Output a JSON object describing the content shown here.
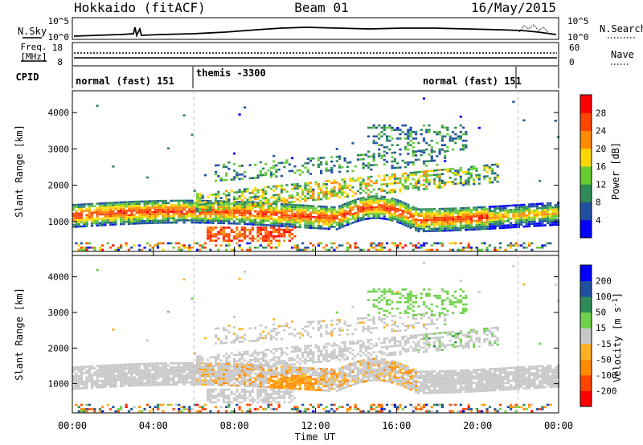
{
  "header": {
    "station": "Hokkaido (fitACF)",
    "beam": "Beam 01",
    "date": "16/May/2015"
  },
  "noise_panel": {
    "left_label": "N.Sky",
    "right_label": "N.Search",
    "left_ticks": [
      "10^5",
      "10^0"
    ],
    "right_ticks": [
      "10^5",
      "10^0"
    ]
  },
  "freq_panel": {
    "left_label_1": "Freq.",
    "left_label_2": "[MHz]",
    "left_ticks": [
      "18",
      "8"
    ],
    "right_label": "Nave",
    "right_ticks": [
      "60",
      "0"
    ]
  },
  "cpid_panel": {
    "label": "CPID",
    "segments": [
      {
        "text": "normal (fast) 151",
        "start_h": 0,
        "end_h": 6
      },
      {
        "text": "themis -3300",
        "start_h": 6,
        "end_h": 22
      },
      {
        "text": "normal (fast) 151",
        "start_h": 18.5,
        "end_h": 22
      }
    ]
  },
  "colors": {
    "power_scale": [
      "#0000ff",
      "#1f4fa0",
      "#2e8b57",
      "#66cc33",
      "#ffd700",
      "#ff8c00",
      "#ff4500",
      "#ff0000"
    ],
    "velocity_scale": [
      "#ff0000",
      "#ff4500",
      "#ff8c00",
      "#ffb020",
      "#c8c8c8",
      "#6ed34a",
      "#2e8b57",
      "#1f4fa0",
      "#0000ff"
    ],
    "ground_scatter": "#c8c8c8"
  },
  "chart_data": [
    {
      "type": "heatmap",
      "title": "",
      "ylabel": "Slant Range [km]",
      "xlabel": "",
      "xlim_hours": [
        0,
        24
      ],
      "ylim_km": [
        180,
        4600
      ],
      "yticks": [
        "1000",
        "2000",
        "3000",
        "4000"
      ],
      "colorbar": {
        "label": "Power [dB]",
        "ticks": [
          "4",
          "8",
          "12",
          "16",
          "20",
          "24",
          "28"
        ],
        "range": [
          0,
          32
        ]
      },
      "bands": [
        {
          "name": "main_echo",
          "range_km": [
            850,
            1450
          ],
          "start_h": 0,
          "end_h": 24,
          "peak_db": 28
        },
        {
          "name": "rising_band",
          "range_km": [
            1600,
            2300
          ],
          "start_h": 6,
          "end_h": 21,
          "peak_db": 22
        },
        {
          "name": "upper_band",
          "range_km": [
            2400,
            3000
          ],
          "start_h": 8,
          "end_h": 18,
          "peak_db": 12
        },
        {
          "name": "high_patch",
          "range_km": [
            3000,
            3600
          ],
          "start_h": 15,
          "end_h": 19,
          "peak_db": 10
        }
      ]
    },
    {
      "type": "heatmap",
      "title": "",
      "ylabel": "Slant Range [km]",
      "xlabel": "Time UT",
      "xlim_hours": [
        0,
        24
      ],
      "ylim_km": [
        180,
        4600
      ],
      "xticks": [
        "00:00",
        "04:00",
        "08:00",
        "12:00",
        "16:00",
        "20:00",
        "00:00"
      ],
      "yticks": [
        "1000",
        "2000",
        "3000",
        "4000"
      ],
      "colorbar": {
        "label": "Velocity [m s",
        "label_sup": "-1",
        "label_end": "]",
        "ticks": [
          "-200",
          "-100",
          "-50",
          "-15",
          "15",
          "50",
          "100",
          "200"
        ],
        "range": [
          -250,
          250
        ]
      }
    }
  ]
}
